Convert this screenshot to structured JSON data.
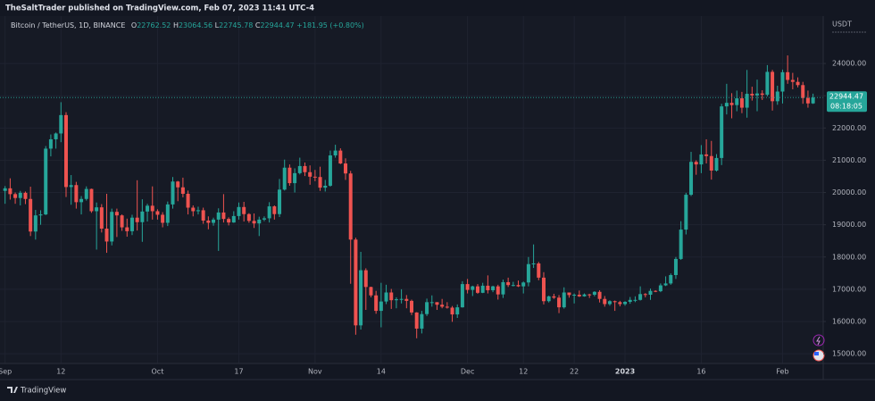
{
  "chart_data": {
    "type": "candlestick",
    "header": "TheSaltTrader published on TradingView.com, Feb 07, 2023 11:41 UTC-4",
    "symbol": "Bitcoin / TetherUS, 1D, BINANCE",
    "legend_keys": {
      "open": "O",
      "high": "H",
      "low": "L",
      "close": "C"
    },
    "change": "+181.95 (+0.80%)",
    "currency": "USDT",
    "countdown": "08:18:05",
    "footer": "TradingView",
    "up_color": "#26a69a",
    "down_color": "#ef5350",
    "grid": true,
    "x": [
      "2022-09-01",
      "2022-09-02",
      "2022-09-03",
      "2022-09-04",
      "2022-09-05",
      "2022-09-06",
      "2022-09-07",
      "2022-09-08",
      "2022-09-09",
      "2022-09-10",
      "2022-09-11",
      "2022-09-12",
      "2022-09-13",
      "2022-09-14",
      "2022-09-15",
      "2022-09-16",
      "2022-09-17",
      "2022-09-18",
      "2022-09-19",
      "2022-09-20",
      "2022-09-21",
      "2022-09-22",
      "2022-09-23",
      "2022-09-24",
      "2022-09-25",
      "2022-09-26",
      "2022-09-27",
      "2022-09-28",
      "2022-09-29",
      "2022-09-30",
      "2022-10-01",
      "2022-10-02",
      "2022-10-03",
      "2022-10-04",
      "2022-10-05",
      "2022-10-06",
      "2022-10-07",
      "2022-10-08",
      "2022-10-09",
      "2022-10-10",
      "2022-10-11",
      "2022-10-12",
      "2022-10-13",
      "2022-10-14",
      "2022-10-15",
      "2022-10-16",
      "2022-10-17",
      "2022-10-18",
      "2022-10-19",
      "2022-10-20",
      "2022-10-21",
      "2022-10-22",
      "2022-10-23",
      "2022-10-24",
      "2022-10-25",
      "2022-10-26",
      "2022-10-27",
      "2022-10-28",
      "2022-10-29",
      "2022-10-30",
      "2022-10-31",
      "2022-11-01",
      "2022-11-02",
      "2022-11-03",
      "2022-11-04",
      "2022-11-05",
      "2022-11-06",
      "2022-11-07",
      "2022-11-08",
      "2022-11-09",
      "2022-11-10",
      "2022-11-11",
      "2022-11-12",
      "2022-11-13",
      "2022-11-14",
      "2022-11-15",
      "2022-11-16",
      "2022-11-17",
      "2022-11-18",
      "2022-11-19",
      "2022-11-20",
      "2022-11-21",
      "2022-11-22",
      "2022-11-23",
      "2022-11-24",
      "2022-11-25",
      "2022-11-26",
      "2022-11-27",
      "2022-11-28",
      "2022-11-29",
      "2022-11-30",
      "2022-12-01",
      "2022-12-02",
      "2022-12-03",
      "2022-12-04",
      "2022-12-05",
      "2022-12-06",
      "2022-12-07",
      "2022-12-08",
      "2022-12-09",
      "2022-12-10",
      "2022-12-11",
      "2022-12-12",
      "2022-12-13",
      "2022-12-14",
      "2022-12-15",
      "2022-12-16",
      "2022-12-17",
      "2022-12-18",
      "2022-12-19",
      "2022-12-20",
      "2022-12-21",
      "2022-12-22",
      "2022-12-23",
      "2022-12-24",
      "2022-12-25",
      "2022-12-26",
      "2022-12-27",
      "2022-12-28",
      "2022-12-29",
      "2022-12-30",
      "2022-12-31",
      "2023-01-01",
      "2023-01-02",
      "2023-01-03",
      "2023-01-04",
      "2023-01-05",
      "2023-01-06",
      "2023-01-07",
      "2023-01-08",
      "2023-01-09",
      "2023-01-10",
      "2023-01-11",
      "2023-01-12",
      "2023-01-13",
      "2023-01-14",
      "2023-01-15",
      "2023-01-16",
      "2023-01-17",
      "2023-01-18",
      "2023-01-19",
      "2023-01-20",
      "2023-01-21",
      "2023-01-22",
      "2023-01-23",
      "2023-01-24",
      "2023-01-25",
      "2023-01-26",
      "2023-01-27",
      "2023-01-28",
      "2023-01-29",
      "2023-01-30",
      "2023-01-31",
      "2023-02-01",
      "2023-02-02",
      "2023-02-03",
      "2023-02-04",
      "2023-02-05",
      "2023-02-06",
      "2023-02-07"
    ],
    "open": [
      20050,
      20130,
      19950,
      19830,
      19990,
      19800,
      18790,
      19290,
      19320,
      21360,
      21650,
      21830,
      22400,
      20170,
      20230,
      19700,
      19800,
      20110,
      19420,
      19540,
      18880,
      18480,
      19400,
      19290,
      18920,
      18800,
      19220,
      19080,
      19410,
      19590,
      19420,
      19310,
      19060,
      19630,
      20340,
      20160,
      19960,
      19530,
      19420,
      19450,
      19130,
      19060,
      19160,
      19380,
      19180,
      19070,
      19270,
      19550,
      19330,
      19120,
      19040,
      19160,
      19200,
      19570,
      19330,
      20090,
      20770,
      20290,
      20600,
      20820,
      20630,
      20490,
      20480,
      20150,
      20210,
      21150,
      21300,
      20900,
      20590,
      18540,
      15880,
      17590,
      17070,
      16810,
      16330,
      16620,
      16900,
      16660,
      16690,
      16700,
      16640,
      16280,
      15780,
      16230,
      16600,
      16600,
      16520,
      16460,
      16430,
      16220,
      16440,
      17160,
      16980,
      17090,
      16890,
      17110,
      16970,
      17090,
      16840,
      17220,
      17130,
      17130,
      17090,
      17210,
      17780,
      17800,
      17360,
      16630,
      16780,
      16740,
      16440,
      16900,
      16820,
      16830,
      16780,
      16840,
      16830,
      16920,
      16700,
      16540,
      16630,
      16600,
      16540,
      16610,
      16670,
      16670,
      16850,
      16830,
      16950,
      16940,
      17120,
      17180,
      17440,
      17940,
      18850,
      19930,
      20950,
      20870,
      21180,
      21130,
      20680,
      21070,
      22670,
      22780,
      22710,
      22920,
      22630,
      23060,
      23010,
      23070,
      23030,
      23740,
      22830,
      23130,
      23730,
      23490,
      23430,
      23330,
      22930,
      22762.52
    ],
    "high": [
      20200,
      20440,
      20000,
      20050,
      20030,
      20180,
      19460,
      19450,
      21440,
      21800,
      21860,
      22800,
      22490,
      20540,
      20330,
      19890,
      20190,
      20120,
      19690,
      19640,
      19960,
      19500,
      19500,
      19320,
      19190,
      19310,
      20380,
      19790,
      19650,
      20190,
      19480,
      19390,
      19720,
      20480,
      20360,
      20460,
      20060,
      19600,
      19560,
      19530,
      19260,
      19220,
      19510,
      19950,
      19230,
      19420,
      19690,
      19710,
      19360,
      19350,
      19250,
      19260,
      19700,
      19600,
      20420,
      21020,
      20870,
      20750,
      21080,
      20930,
      20840,
      20700,
      20800,
      20390,
      21300,
      21480,
      21370,
      21060,
      20670,
      18600,
      18160,
      17650,
      17080,
      16950,
      17200,
      17140,
      17010,
      16750,
      17000,
      16820,
      16680,
      16290,
      16330,
      16710,
      16810,
      16600,
      16700,
      16600,
      16480,
      16530,
      17250,
      17320,
      17110,
      17160,
      17200,
      17430,
      17110,
      17140,
      17300,
      17360,
      17230,
      17270,
      17240,
      18000,
      18390,
      17850,
      17530,
      16800,
      16860,
      16820,
      17060,
      16900,
      16870,
      16960,
      16870,
      16860,
      16940,
      16970,
      16790,
      16660,
      16650,
      16640,
      16630,
      16760,
      16780,
      17090,
      16880,
      17020,
      16970,
      17180,
      17400,
      17490,
      18000,
      19110,
      19990,
      21260,
      21000,
      21470,
      21650,
      21600,
      21190,
      22750,
      23370,
      23080,
      23160,
      23120,
      23800,
      23280,
      23500,
      23170,
      23950,
      23800,
      23310,
      23810,
      24250,
      23710,
      23570,
      23430,
      23160,
      23064.56
    ],
    "low": [
      19650,
      19780,
      19650,
      19600,
      19640,
      18650,
      18540,
      19000,
      19300,
      21120,
      21360,
      21560,
      19860,
      19620,
      19500,
      19320,
      19750,
      19370,
      18230,
      18760,
      18130,
      18360,
      18620,
      18810,
      18630,
      18680,
      18820,
      18470,
      19100,
      19160,
      19160,
      18920,
      18960,
      19500,
      19730,
      19850,
      19320,
      19260,
      19320,
      19030,
      18860,
      18970,
      18190,
      19070,
      18980,
      19060,
      19160,
      19100,
      19060,
      18900,
      18650,
      19110,
      19070,
      19160,
      19240,
      20060,
      20210,
      20000,
      20560,
      20510,
      20240,
      20350,
      20050,
      20030,
      20180,
      21080,
      20880,
      20390,
      17170,
      15590,
      15750,
      16360,
      16750,
      16240,
      15820,
      16540,
      16390,
      16410,
      16560,
      16410,
      16200,
      15480,
      15630,
      16170,
      16460,
      16360,
      16410,
      16400,
      15990,
      16110,
      16430,
      16870,
      16790,
      16860,
      16880,
      16870,
      16910,
      16680,
      16730,
      17070,
      17090,
      17070,
      16870,
      17090,
      17660,
      17280,
      16530,
      16590,
      16700,
      16260,
      16400,
      16740,
      16560,
      16760,
      16770,
      16730,
      16780,
      16590,
      16460,
      16490,
      16330,
      16470,
      16490,
      16550,
      16600,
      16650,
      16750,
      16670,
      16910,
      16910,
      17100,
      17140,
      17320,
      17910,
      18700,
      19890,
      20550,
      20600,
      20900,
      20400,
      20650,
      20850,
      22420,
      22300,
      22520,
      22460,
      22320,
      22850,
      22520,
      22870,
      22980,
      22540,
      22720,
      22760,
      23370,
      23200,
      23260,
      22750,
      22630,
      22745.78
    ],
    "close": [
      20130,
      19950,
      19830,
      19990,
      19800,
      18790,
      19290,
      19320,
      21360,
      21650,
      21830,
      22400,
      20170,
      20230,
      19700,
      19800,
      20110,
      19420,
      19540,
      18880,
      18480,
      19400,
      19290,
      18920,
      18800,
      19220,
      19080,
      19410,
      19590,
      19420,
      19310,
      19060,
      19630,
      20340,
      20160,
      19960,
      19530,
      19420,
      19450,
      19130,
      19060,
      19160,
      19380,
      19180,
      19070,
      19270,
      19550,
      19330,
      19120,
      19040,
      19160,
      19200,
      19570,
      19330,
      20090,
      20770,
      20290,
      20600,
      20820,
      20630,
      20490,
      20480,
      20150,
      20210,
      21150,
      21300,
      20900,
      20590,
      18540,
      15880,
      17590,
      17070,
      16810,
      16330,
      16620,
      16900,
      16660,
      16690,
      16700,
      16640,
      16280,
      15780,
      16230,
      16600,
      16600,
      16520,
      16460,
      16430,
      16220,
      16440,
      17160,
      16980,
      17090,
      16890,
      17110,
      16970,
      17090,
      16840,
      17220,
      17130,
      17130,
      17090,
      17210,
      17780,
      17800,
      17360,
      16630,
      16780,
      16740,
      16440,
      16900,
      16820,
      16830,
      16780,
      16840,
      16830,
      16920,
      16700,
      16540,
      16630,
      16600,
      16540,
      16610,
      16670,
      16670,
      16850,
      16830,
      16950,
      16940,
      17120,
      17180,
      17440,
      17940,
      18850,
      19930,
      20950,
      20870,
      21180,
      21130,
      20680,
      21070,
      22670,
      22780,
      22710,
      22920,
      22630,
      23060,
      23010,
      23070,
      23030,
      23740,
      22830,
      23130,
      23730,
      23490,
      23430,
      23330,
      22930,
      22762.52,
      22944.47
    ],
    "xlim": [
      "2022-08-31",
      "2023-02-09"
    ],
    "xticks": [
      {
        "value": "2022-09-01",
        "label": "Sep"
      },
      {
        "value": "2022-09-12",
        "label": "12"
      },
      {
        "value": "2022-10-01",
        "label": "Oct"
      },
      {
        "value": "2022-10-17",
        "label": "17"
      },
      {
        "value": "2022-11-01",
        "label": "Nov"
      },
      {
        "value": "2022-11-14",
        "label": "14"
      },
      {
        "value": "2022-12-01",
        "label": "Dec"
      },
      {
        "value": "2022-12-12",
        "label": "12"
      },
      {
        "value": "2022-12-22",
        "label": "22"
      },
      {
        "value": "2023-01-01",
        "label": "2023"
      },
      {
        "value": "2023-01-16",
        "label": "16"
      },
      {
        "value": "2023-02-01",
        "label": "Feb"
      }
    ],
    "ylim": [
      14200,
      25470
    ],
    "yticks": [
      {
        "value": 15000,
        "label": "15000.00"
      },
      {
        "value": 16000,
        "label": "16000.00"
      },
      {
        "value": 17000,
        "label": "17000.00"
      },
      {
        "value": 18000,
        "label": "18000.00"
      },
      {
        "value": 19000,
        "label": "19000.00"
      },
      {
        "value": 20000,
        "label": "20000.00"
      },
      {
        "value": 21000,
        "label": "21000.00"
      },
      {
        "value": 22000,
        "label": "22000.00"
      },
      {
        "value": 23000,
        "label": "23000.00"
      },
      {
        "value": 24000,
        "label": "24000.00"
      }
    ]
  }
}
